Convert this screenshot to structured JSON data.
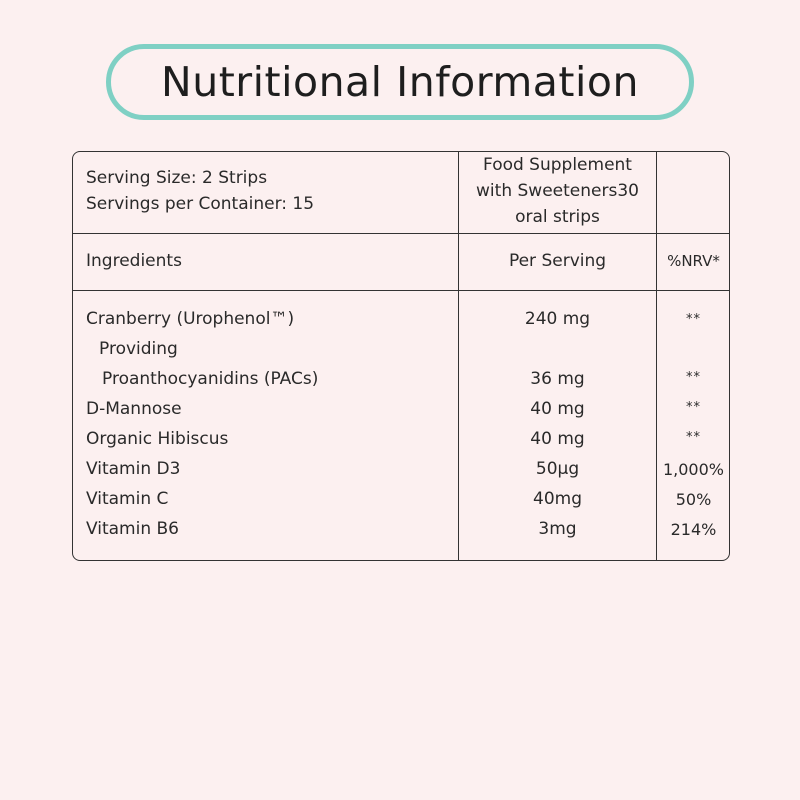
{
  "title": "Nutritional Information",
  "header": {
    "serving_size": "Serving Size: 2 Strips",
    "servings_per_container": "Servings per Container: 15",
    "product_line1": "Food Supplement",
    "product_line2": "with Sweeteners30",
    "product_line3": "oral strips"
  },
  "columns": {
    "ingredients": "Ingredients",
    "per_serving": "Per Serving",
    "nrv": "%NRV*"
  },
  "rows": [
    {
      "name": "Cranberry (Urophenol™)",
      "amount": "240 mg",
      "nrv": "**"
    },
    {
      "name": "Providing",
      "amount": "",
      "nrv": ""
    },
    {
      "name": "Proanthocyanidins (PACs)",
      "amount": "36 mg",
      "nrv": "**"
    },
    {
      "name": "D-Mannose",
      "amount": "40 mg",
      "nrv": "**"
    },
    {
      "name": "Organic Hibiscus",
      "amount": "40 mg",
      "nrv": "**"
    },
    {
      "name": "Vitamin D3",
      "amount": "50µg",
      "nrv": "1,000%"
    },
    {
      "name": "Vitamin C",
      "amount": "40mg",
      "nrv": "50%"
    },
    {
      "name": "Vitamin B6",
      "amount": "3mg",
      "nrv": "214%"
    }
  ]
}
